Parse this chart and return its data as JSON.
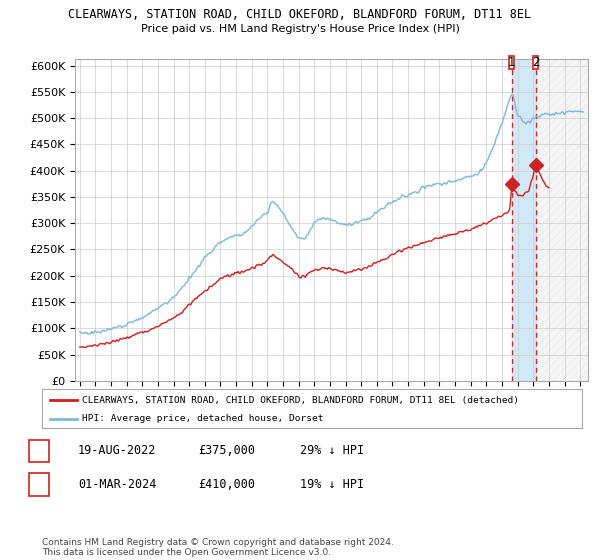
{
  "title1": "CLEARWAYS, STATION ROAD, CHILD OKEFORD, BLANDFORD FORUM, DT11 8EL",
  "title2": "Price paid vs. HM Land Registry's House Price Index (HPI)",
  "ylabel_ticks": [
    "£0",
    "£50K",
    "£100K",
    "£150K",
    "£200K",
    "£250K",
    "£300K",
    "£350K",
    "£400K",
    "£450K",
    "£500K",
    "£550K",
    "£600K"
  ],
  "ytick_vals": [
    0,
    50000,
    100000,
    150000,
    200000,
    250000,
    300000,
    350000,
    400000,
    450000,
    500000,
    550000,
    600000
  ],
  "legend_line1": "CLEARWAYS, STATION ROAD, CHILD OKEFORD, BLANDFORD FORUM, DT11 8EL (detached)",
  "legend_line2": "HPI: Average price, detached house, Dorset",
  "sale1_date": "19-AUG-2022",
  "sale1_price": "£375,000",
  "sale1_hpi": "29% ↓ HPI",
  "sale2_date": "01-MAR-2024",
  "sale2_price": "£410,000",
  "sale2_hpi": "19% ↓ HPI",
  "footer": "Contains HM Land Registry data © Crown copyright and database right 2024.\nThis data is licensed under the Open Government Licence v3.0.",
  "hpi_color": "#7fb8d8",
  "price_color": "#cc2222",
  "sale_marker_color": "#cc2222",
  "bg_color": "#ffffff",
  "grid_color": "#cccccc",
  "hatch_color": "#d0e8f8"
}
